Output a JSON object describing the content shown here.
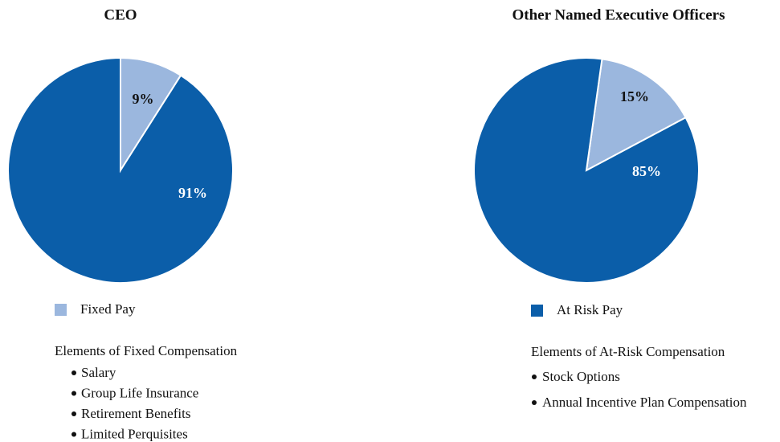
{
  "chart_data": [
    {
      "type": "pie",
      "title": "CEO",
      "categories": [
        "Fixed Pay",
        null
      ],
      "values": [
        9,
        91
      ],
      "value_labels": [
        "9%",
        "91%"
      ],
      "colors": [
        "#9bb7de",
        "#0b5ea9"
      ],
      "elements_heading": "Elements of Fixed Compensation",
      "elements": [
        "Salary",
        "Group Life Insurance",
        "Retirement Benefits",
        "Limited Perquisites"
      ]
    },
    {
      "type": "pie",
      "title": "Other Named Executive Officers",
      "categories": [
        null,
        "At Risk Pay"
      ],
      "values": [
        15,
        85
      ],
      "value_labels": [
        "15%",
        "85%"
      ],
      "colors": [
        "#9bb7de",
        "#0b5ea9"
      ],
      "elements_heading": "Elements of At-Risk Compensation",
      "elements": [
        "Stock Options",
        "Annual Incentive Plan Compensation"
      ]
    }
  ]
}
